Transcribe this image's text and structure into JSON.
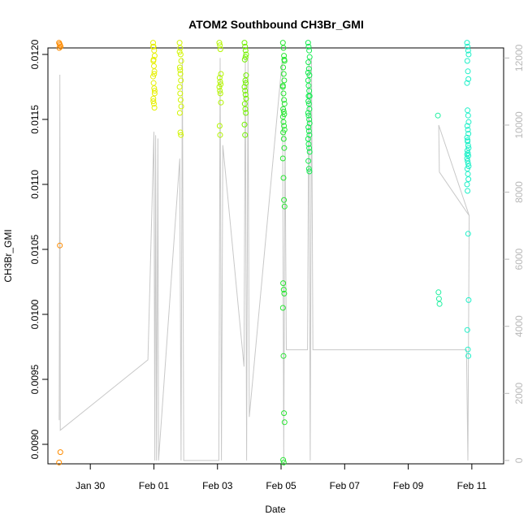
{
  "chart_data": {
    "type": "scatter",
    "title": "ATOM2 Southbound CH3Br_GMI",
    "xlabel": "Date",
    "ylabel": "CH3Br_GMI",
    "x_range": [
      "2017-01-28T16:00",
      "2017-02-12T00:00"
    ],
    "ylim": [
      0.00885,
      0.01205
    ],
    "y2lim": [
      -100,
      12300
    ],
    "x_ticks": [
      {
        "date": "2017-01-30",
        "label": "Jan 30"
      },
      {
        "date": "2017-02-01",
        "label": "Feb 01"
      },
      {
        "date": "2017-02-03",
        "label": "Feb 03"
      },
      {
        "date": "2017-02-05",
        "label": "Feb 05"
      },
      {
        "date": "2017-02-07",
        "label": "Feb 07"
      },
      {
        "date": "2017-02-09",
        "label": "Feb 09"
      },
      {
        "date": "2017-02-11",
        "label": "Feb 11"
      }
    ],
    "y_ticks": [
      {
        "value": 0.009,
        "label": "0.0090"
      },
      {
        "value": 0.0095,
        "label": "0.0095"
      },
      {
        "value": 0.01,
        "label": "0.0100"
      },
      {
        "value": 0.0105,
        "label": "0.0105"
      },
      {
        "value": 0.011,
        "label": "0.0110"
      },
      {
        "value": 0.0115,
        "label": "0.0115"
      },
      {
        "value": 0.012,
        "label": "0.0120"
      }
    ],
    "y2_ticks": [
      {
        "value": 0,
        "label": "0"
      },
      {
        "value": 2000,
        "label": "2000"
      },
      {
        "value": 4000,
        "label": "4000"
      },
      {
        "value": 6000,
        "label": "6000"
      },
      {
        "value": 8000,
        "label": "8000"
      },
      {
        "value": 10000,
        "label": "10000"
      },
      {
        "value": 12000,
        "label": "12000"
      }
    ],
    "altitude_line_color": "#c8c8c8",
    "point_groups": [
      {
        "date": "2017-01-29",
        "time": "01:00",
        "color": "#ff8c00",
        "values": [
          0.01209,
          0.01208,
          0.01207,
          0.01206,
          0.01205,
          0.01053,
          0.00894,
          0.00886
        ]
      },
      {
        "date": "2017-02-01",
        "time": "00:00",
        "color": "#e6f000",
        "values": [
          0.01209,
          0.01206,
          0.01203,
          0.01199,
          0.01195,
          0.01191,
          0.01187,
          0.01183,
          0.01178,
          0.01174,
          0.0117,
          0.01166,
          0.01162,
          0.01159,
          0.01206,
          0.01196,
          0.01185,
          0.01172,
          0.01164
        ]
      },
      {
        "date": "2017-02-01",
        "time": "20:00",
        "color": "#d2f500",
        "values": [
          0.01209,
          0.01205,
          0.012,
          0.01195,
          0.0119,
          0.01185,
          0.0118,
          0.01175,
          0.0117,
          0.01165,
          0.0116,
          0.01155,
          0.0114,
          0.01138,
          0.01202,
          0.01188
        ]
      },
      {
        "date": "2017-02-03",
        "time": "02:00",
        "color": "#b4f500",
        "values": [
          0.01209,
          0.01207,
          0.01204,
          0.01185,
          0.01182,
          0.01179,
          0.01177,
          0.01175,
          0.01172,
          0.0117,
          0.01163,
          0.01145,
          0.01138
        ]
      },
      {
        "date": "2017-02-03",
        "time": "21:00",
        "color": "#73f000",
        "values": [
          0.01209,
          0.01206,
          0.01203,
          0.012,
          0.01196,
          0.0118,
          0.01178,
          0.01175,
          0.01172,
          0.01169,
          0.01166,
          0.01162,
          0.01158,
          0.01155,
          0.01146,
          0.01138,
          0.01198,
          0.01184
        ]
      },
      {
        "date": "2017-02-05",
        "time": "02:00",
        "color": "#28e632",
        "values": [
          0.01209,
          0.01205,
          0.01199,
          0.01195,
          0.0119,
          0.01185,
          0.0118,
          0.01176,
          0.0117,
          0.01165,
          0.01162,
          0.01158,
          0.01156,
          0.01154,
          0.01152,
          0.01148,
          0.01145,
          0.01142,
          0.0114,
          0.01135,
          0.01128,
          0.0112,
          0.01105,
          0.01088,
          0.01083,
          0.01024,
          0.01019,
          0.01016,
          0.01005,
          0.00968,
          0.00924,
          0.00917,
          0.00888,
          0.00886,
          0.01196,
          0.01175
        ]
      },
      {
        "date": "2017-02-05",
        "time": "21:00",
        "color": "#14eb50",
        "values": [
          0.01209,
          0.01206,
          0.01203,
          0.01198,
          0.01194,
          0.01189,
          0.01184,
          0.0118,
          0.01176,
          0.01172,
          0.01168,
          0.01164,
          0.01162,
          0.01158,
          0.01155,
          0.01153,
          0.0115,
          0.01147,
          0.01144,
          0.01141,
          0.01138,
          0.01135,
          0.01131,
          0.01128,
          0.01125,
          0.01118,
          0.01112,
          0.0111,
          0.01186,
          0.01168
        ]
      },
      {
        "date": "2017-02-09",
        "time": "23:00",
        "color": "#1ef0a0",
        "values": [
          0.01153,
          0.01017,
          0.01012,
          0.01008
        ]
      },
      {
        "date": "2017-02-10",
        "time": "21:00",
        "color": "#1ef0c8",
        "values": [
          0.01209,
          0.01206,
          0.01203,
          0.012,
          0.01195,
          0.01187,
          0.01181,
          0.01178,
          0.01157,
          0.01153,
          0.01148,
          0.01145,
          0.01142,
          0.01139,
          0.01136,
          0.01133,
          0.0113,
          0.01128,
          0.01126,
          0.01124,
          0.01122,
          0.0112,
          0.01118,
          0.01116,
          0.01114,
          0.01112,
          0.01108,
          0.01104,
          0.011,
          0.01095,
          0.01062,
          0.01011,
          0.00988,
          0.00973,
          0.00968,
          0.01123,
          0.01134
        ]
      }
    ],
    "altitude_track": [
      {
        "date": "2017-01-29",
        "time": "00:30",
        "alt": 1200
      },
      {
        "date": "2017-01-29",
        "time": "01:00",
        "alt": 11500
      },
      {
        "date": "2017-01-29",
        "time": "01:20",
        "alt": 900
      },
      {
        "date": "2017-01-31",
        "time": "19:30",
        "alt": 3000
      },
      {
        "date": "2017-02-01",
        "time": "00:00",
        "alt": 9800
      },
      {
        "date": "2017-02-01",
        "time": "00:40",
        "alt": 0
      },
      {
        "date": "2017-02-01",
        "time": "01:20",
        "alt": 9700
      },
      {
        "date": "2017-02-01",
        "time": "02:00",
        "alt": 0
      },
      {
        "date": "2017-02-01",
        "time": "03:00",
        "alt": 9600
      },
      {
        "date": "2017-02-01",
        "time": "03:30",
        "alt": 0
      },
      {
        "date": "2017-02-01",
        "time": "19:30",
        "alt": 9000
      },
      {
        "date": "2017-02-01",
        "time": "20:30",
        "alt": 0
      },
      {
        "date": "2017-02-01",
        "time": "21:30",
        "alt": 12000
      },
      {
        "date": "2017-02-01",
        "time": "22:30",
        "alt": 0
      },
      {
        "date": "2017-02-03",
        "time": "01:00",
        "alt": 0
      },
      {
        "date": "2017-02-03",
        "time": "02:00",
        "alt": 12000
      },
      {
        "date": "2017-02-03",
        "time": "03:00",
        "alt": 0
      },
      {
        "date": "2017-02-03",
        "time": "04:00",
        "alt": 9400
      },
      {
        "date": "2017-02-03",
        "time": "20:00",
        "alt": 2800
      },
      {
        "date": "2017-02-03",
        "time": "21:00",
        "alt": 12000
      },
      {
        "date": "2017-02-03",
        "time": "22:00",
        "alt": 0
      },
      {
        "date": "2017-02-03",
        "time": "23:00",
        "alt": 12000
      },
      {
        "date": "2017-02-04",
        "time": "00:00",
        "alt": 1300
      },
      {
        "date": "2017-02-05",
        "time": "01:00",
        "alt": 12000
      },
      {
        "date": "2017-02-05",
        "time": "02:00",
        "alt": 0
      },
      {
        "date": "2017-02-05",
        "time": "03:00",
        "alt": 9800
      },
      {
        "date": "2017-02-05",
        "time": "04:00",
        "alt": 3300
      },
      {
        "date": "2017-02-05",
        "time": "20:00",
        "alt": 3300
      },
      {
        "date": "2017-02-05",
        "time": "21:00",
        "alt": 12000
      },
      {
        "date": "2017-02-05",
        "time": "22:00",
        "alt": 0
      },
      {
        "date": "2017-02-05",
        "time": "23:00",
        "alt": 12000
      },
      {
        "date": "2017-02-06",
        "time": "00:00",
        "alt": 3300
      },
      {
        "date": "2017-02-10",
        "time": "20:00",
        "alt": 3300
      },
      {
        "date": "2017-02-10",
        "time": "21:00",
        "alt": 0
      },
      {
        "date": "2017-02-10",
        "time": "22:00",
        "alt": 7300
      },
      {
        "date": "2017-02-09",
        "time": "23:00",
        "alt": 10000
      },
      {
        "date": "2017-02-09",
        "time": "23:30",
        "alt": 8600
      },
      {
        "date": "2017-02-10",
        "time": "22:00",
        "alt": 7300
      }
    ]
  }
}
